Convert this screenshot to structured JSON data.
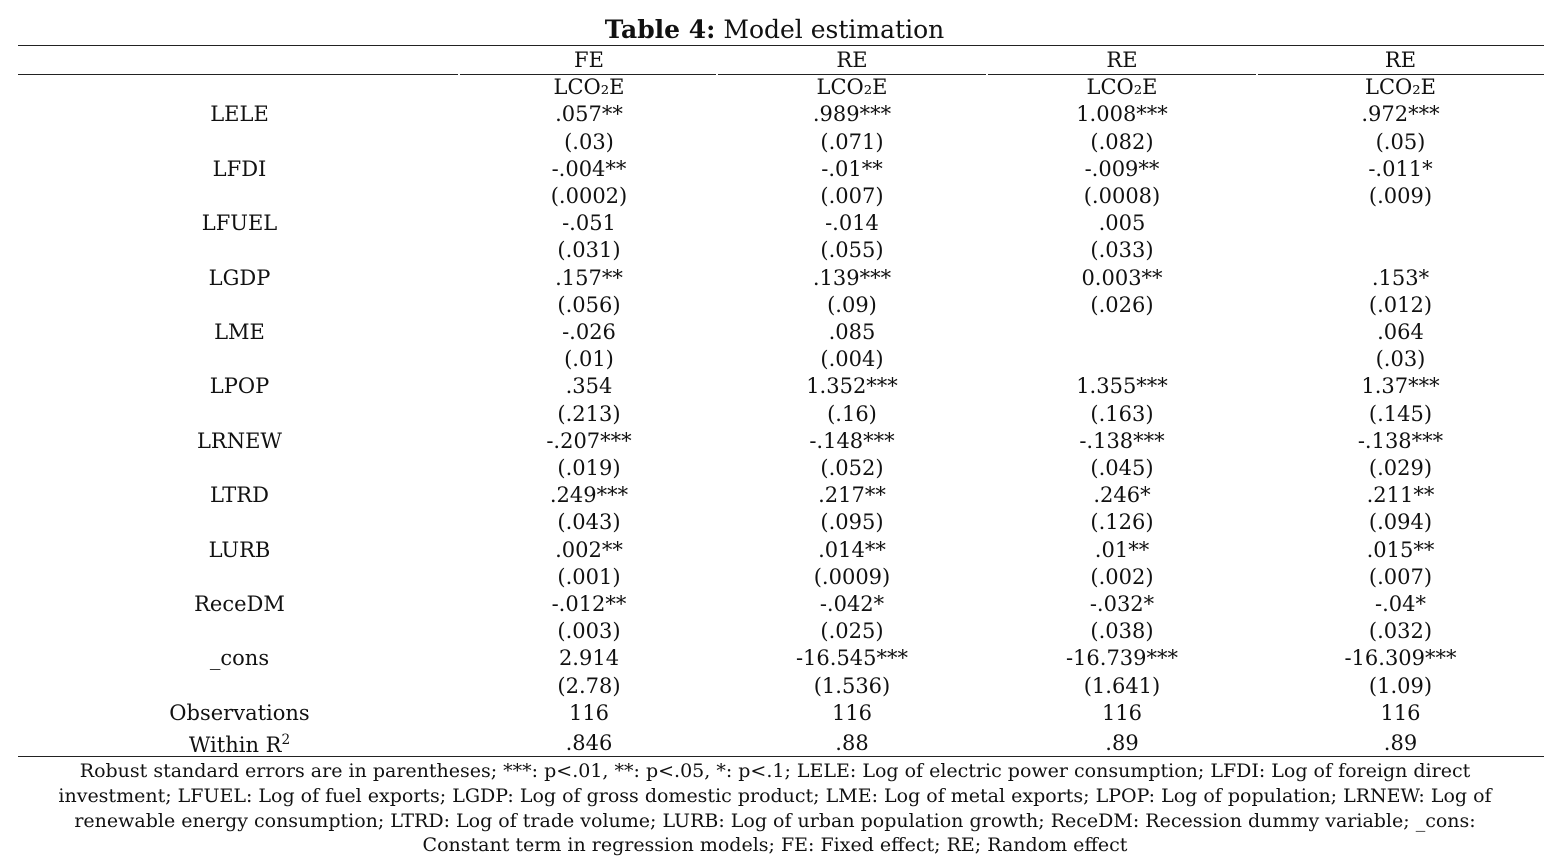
{
  "table": {
    "title_bold": "Table 4:",
    "title_rest": " Model estimation",
    "columns": [
      {
        "model": "FE",
        "dependent": "LCO₂E"
      },
      {
        "model": "RE",
        "dependent": "LCO₂E"
      },
      {
        "model": "RE",
        "dependent": "LCO₂E"
      },
      {
        "model": "RE",
        "dependent": "LCO₂E"
      }
    ],
    "rows": [
      {
        "label": "LELE",
        "coef": [
          ".057**",
          ".989***",
          "1.008***",
          ".972***"
        ],
        "se": [
          "(.03)",
          "(.071)",
          "(.082)",
          "(.05)"
        ]
      },
      {
        "label": "LFDI",
        "coef": [
          "-.004**",
          "-.01**",
          "-.009**",
          "-.011*"
        ],
        "se": [
          "(.0002)",
          "(.007)",
          "(.0008)",
          "(.009)"
        ]
      },
      {
        "label": "LFUEL",
        "coef": [
          "-.051",
          "-.014",
          ".005",
          ""
        ],
        "se": [
          "(.031)",
          "(.055)",
          "(.033)",
          ""
        ]
      },
      {
        "label": "LGDP",
        "coef": [
          ".157**",
          ".139***",
          "0.003**",
          ".153*"
        ],
        "se": [
          "(.056)",
          "(.09)",
          "(.026)",
          "(.012)"
        ]
      },
      {
        "label": "LME",
        "coef": [
          "-.026",
          ".085",
          "",
          ".064"
        ],
        "se": [
          "(.01)",
          "(.004)",
          "",
          "(.03)"
        ]
      },
      {
        "label": "LPOP",
        "coef": [
          ".354",
          "1.352***",
          "1.355***",
          "1.37***"
        ],
        "se": [
          "(.213)",
          "(.16)",
          "(.163)",
          "(.145)"
        ]
      },
      {
        "label": "LRNEW",
        "coef": [
          "-.207***",
          "-.148***",
          "-.138***",
          "-.138***"
        ],
        "se": [
          "(.019)",
          "(.052)",
          "(.045)",
          "(.029)"
        ]
      },
      {
        "label": "LTRD",
        "coef": [
          ".249***",
          ".217**",
          ".246*",
          ".211**"
        ],
        "se": [
          "(.043)",
          "(.095)",
          "(.126)",
          "(.094)"
        ]
      },
      {
        "label": "LURB",
        "coef": [
          ".002**",
          ".014**",
          ".01**",
          ".015**"
        ],
        "se": [
          "(.001)",
          "(.0009)",
          "(.002)",
          "(.007)"
        ]
      },
      {
        "label": "ReceDM",
        "coef": [
          "-.012**",
          "-.042*",
          "-.032*",
          "-.04*"
        ],
        "se": [
          "(.003)",
          "(.025)",
          "(.038)",
          "(.032)"
        ]
      },
      {
        "label": "_cons",
        "coef": [
          "2.914",
          "-16.545***",
          "-16.739***",
          "-16.309***"
        ],
        "se": [
          "(2.78)",
          "(1.536)",
          "(1.641)",
          "(1.09)"
        ]
      }
    ],
    "observations": {
      "label": "Observations",
      "values": [
        "116",
        "116",
        "116",
        "116"
      ]
    },
    "within_r2": {
      "label_main": "Within R",
      "label_sup": "2",
      "values": [
        ".846",
        ".88",
        ".89",
        ".89"
      ]
    },
    "note": "Robust standard errors are in parentheses; ***: p<.01, **: p<.05, *: p<.1; LELE: Log of electric power consumption; LFDI: Log of foreign direct investment; LFUEL: Log of fuel exports; LGDP: Log of gross domestic product; LME: Log of metal exports; LPOP: Log of population; LRNEW: Log of renewable energy consumption; LTRD: Log of trade volume; LURB: Log of urban population growth; ReceDM: Recession dummy variable; _cons: Constant term in regression models; FE: Fixed effect; RE; Random effect"
  }
}
